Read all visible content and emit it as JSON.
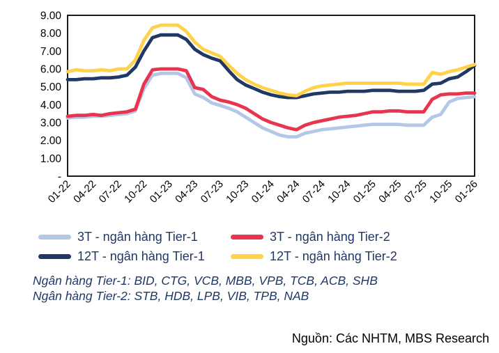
{
  "chart_data": {
    "type": "line",
    "title": "",
    "xlabel": "",
    "ylabel": "",
    "ylim": [
      0,
      9
    ],
    "grid": false,
    "legend_position": "bottom",
    "plot_border_color": "#000000",
    "y_tick_labels": [
      "9.00",
      "8.00",
      "7.00",
      "6.00",
      "5.00",
      "4.00",
      "3.00",
      "2.00",
      "1.00",
      "-"
    ],
    "x_tick_labels": [
      "01-22",
      "04-22",
      "07-22",
      "10-22",
      "01-23",
      "04-23",
      "07-23",
      "10-23",
      "01-24",
      "04-24",
      "07-24",
      "10-24",
      "01-25",
      "04-25",
      "07-25",
      "10-25",
      "01-26"
    ],
    "x": [
      "01-22",
      "02-22",
      "03-22",
      "04-22",
      "05-22",
      "06-22",
      "07-22",
      "08-22",
      "09-22",
      "10-22",
      "11-22",
      "12-22",
      "01-23",
      "02-23",
      "03-23",
      "04-23",
      "05-23",
      "06-23",
      "07-23",
      "08-23",
      "09-23",
      "10-23",
      "11-23",
      "12-23",
      "01-24",
      "02-24",
      "03-24",
      "04-24",
      "05-24",
      "06-24",
      "07-24",
      "08-24",
      "09-24",
      "10-24",
      "11-24",
      "12-24",
      "01-25",
      "02-25",
      "03-25",
      "04-25",
      "05-25",
      "06-25",
      "07-25",
      "08-25",
      "09-25",
      "10-25",
      "11-25",
      "12-25",
      "01-26"
    ],
    "series": [
      {
        "name": "3T - ngân hàng Tier-1",
        "color": "#b4c7e7",
        "values": [
          3.25,
          3.3,
          3.3,
          3.35,
          3.35,
          3.4,
          3.45,
          3.5,
          3.65,
          4.9,
          5.65,
          5.75,
          5.75,
          5.75,
          5.5,
          4.6,
          4.4,
          4.1,
          3.95,
          3.8,
          3.6,
          3.3,
          3.0,
          2.7,
          2.5,
          2.3,
          2.2,
          2.2,
          2.4,
          2.5,
          2.6,
          2.65,
          2.7,
          2.75,
          2.8,
          2.85,
          2.9,
          2.9,
          2.9,
          2.9,
          2.85,
          2.85,
          2.85,
          3.3,
          3.45,
          4.15,
          4.35,
          4.4,
          4.45
        ]
      },
      {
        "name": "3T - ngân hàng Tier-2",
        "color": "#e8354f",
        "values": [
          3.35,
          3.4,
          3.4,
          3.45,
          3.4,
          3.5,
          3.55,
          3.6,
          3.75,
          5.15,
          5.95,
          6.0,
          6.0,
          6.0,
          5.9,
          4.95,
          4.85,
          4.45,
          4.25,
          4.15,
          4.0,
          3.8,
          3.5,
          3.2,
          3.0,
          2.85,
          2.7,
          2.6,
          2.85,
          3.0,
          3.1,
          3.2,
          3.3,
          3.35,
          3.4,
          3.5,
          3.6,
          3.6,
          3.65,
          3.65,
          3.6,
          3.6,
          3.6,
          4.3,
          4.55,
          4.6,
          4.6,
          4.65,
          4.65
        ]
      },
      {
        "name": "12T - ngân hàng Tier-1",
        "color": "#1f3864",
        "values": [
          5.4,
          5.4,
          5.45,
          5.45,
          5.5,
          5.5,
          5.55,
          5.65,
          6.1,
          7.0,
          7.75,
          7.9,
          7.9,
          7.9,
          7.65,
          7.1,
          6.8,
          6.6,
          6.45,
          5.9,
          5.4,
          5.1,
          4.9,
          4.7,
          4.55,
          4.45,
          4.4,
          4.4,
          4.5,
          4.6,
          4.65,
          4.7,
          4.7,
          4.75,
          4.75,
          4.75,
          4.8,
          4.8,
          4.8,
          4.75,
          4.75,
          4.75,
          4.8,
          5.15,
          5.2,
          5.45,
          5.55,
          5.85,
          6.2
        ]
      },
      {
        "name": "12T - ngân hàng Tier-2",
        "color": "#ffd24b",
        "values": [
          5.85,
          5.95,
          5.9,
          5.9,
          5.95,
          5.9,
          6.0,
          6.0,
          6.5,
          7.6,
          8.3,
          8.45,
          8.45,
          8.45,
          8.1,
          7.5,
          7.1,
          6.9,
          6.7,
          6.2,
          5.75,
          5.4,
          5.15,
          4.95,
          4.8,
          4.65,
          4.55,
          4.5,
          4.75,
          4.95,
          5.05,
          5.1,
          5.15,
          5.2,
          5.2,
          5.2,
          5.2,
          5.2,
          5.2,
          5.2,
          5.15,
          5.15,
          5.15,
          5.8,
          5.7,
          5.85,
          5.95,
          6.1,
          6.25
        ]
      }
    ]
  },
  "notes": {
    "tier1": "Ngân hàng Tier-1: BID, CTG, VCB, MBB, VPB, TCB, ACB, SHB",
    "tier2": "Ngân hàng Tier-2: STB, HDB, LPB, VIB, TPB, NAB"
  },
  "source": {
    "text": "Nguồn: Các NHTM, MBS Research"
  },
  "colors": {
    "axis_text": "#000000",
    "legend_text": "#1f3864",
    "note_text": "#1f3864",
    "source_text": "#000000"
  }
}
